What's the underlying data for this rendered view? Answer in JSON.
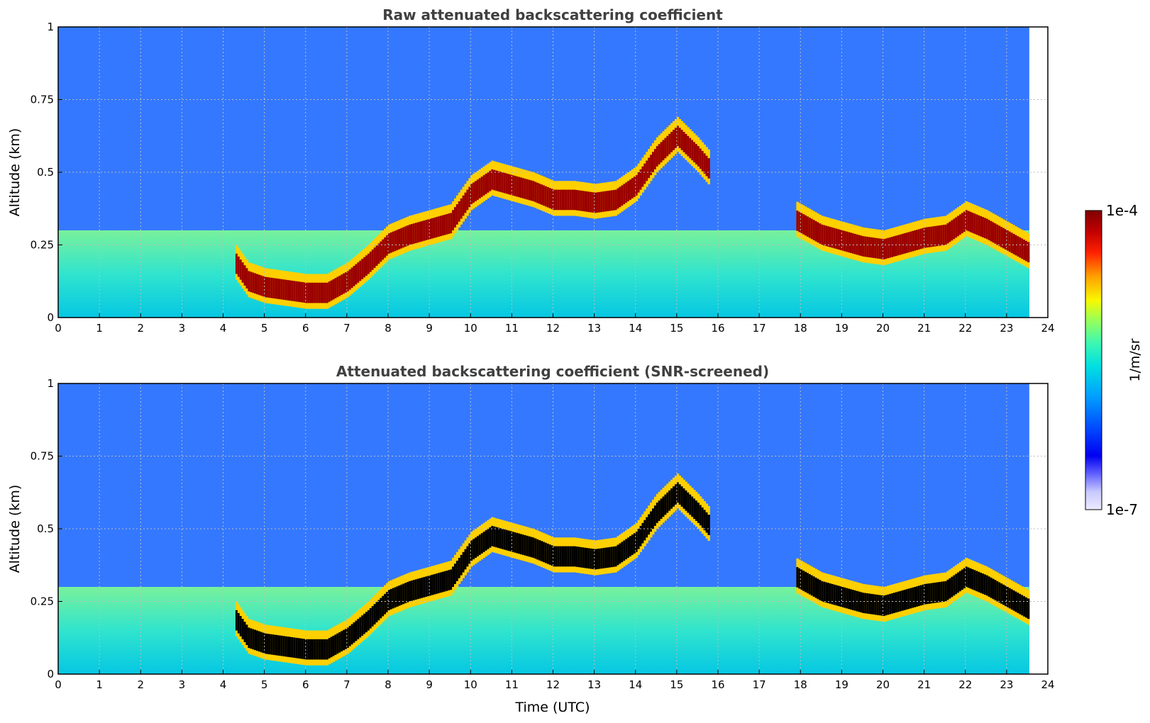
{
  "chart_data": [
    {
      "type": "heatmap",
      "title": "Raw attenuated backscattering coefficient",
      "xlabel": "",
      "ylabel": "Altitude (km)",
      "xlim": [
        0,
        24
      ],
      "ylim": [
        0,
        1
      ],
      "x_ticks": [
        "0",
        "1",
        "2",
        "3",
        "4",
        "5",
        "6",
        "7",
        "8",
        "9",
        "10",
        "11",
        "12",
        "13",
        "14",
        "15",
        "16",
        "17",
        "18",
        "19",
        "20",
        "21",
        "22",
        "23",
        "24"
      ],
      "y_ticks": [
        "0",
        "0.25",
        "0.5",
        "0.75",
        "1"
      ],
      "grid": true,
      "data_end_time": 23.55,
      "layer_altitude_km": {
        "times": [
          4.3,
          4.6,
          5.0,
          5.5,
          6.0,
          6.5,
          7.0,
          7.5,
          8.0,
          8.5,
          9.0,
          9.5,
          10.0,
          10.5,
          11.0,
          11.5,
          12.0,
          12.5,
          13.0,
          13.5,
          14.0,
          14.5,
          15.0,
          15.5,
          15.8,
          18.0,
          18.5,
          19.0,
          19.5,
          20.0,
          20.5,
          21.0,
          21.5,
          22.0,
          22.5,
          23.0,
          23.5
        ],
        "values": [
          0.18,
          0.12,
          0.1,
          0.09,
          0.08,
          0.08,
          0.12,
          0.18,
          0.25,
          0.28,
          0.3,
          0.32,
          0.42,
          0.47,
          0.45,
          0.43,
          0.4,
          0.4,
          0.39,
          0.4,
          0.45,
          0.55,
          0.62,
          0.55,
          0.5,
          0.32,
          0.28,
          0.26,
          0.24,
          0.23,
          0.25,
          0.27,
          0.28,
          0.33,
          0.3,
          0.26,
          0.22
        ]
      }
    },
    {
      "type": "heatmap",
      "title": "Attenuated backscattering coefficient (SNR-screened)",
      "xlabel": "Time (UTC)",
      "ylabel": "Altitude (km)",
      "xlim": [
        0,
        24
      ],
      "ylim": [
        0,
        1
      ],
      "x_ticks": [
        "0",
        "1",
        "2",
        "3",
        "4",
        "5",
        "6",
        "7",
        "8",
        "9",
        "10",
        "11",
        "12",
        "13",
        "14",
        "15",
        "16",
        "17",
        "18",
        "19",
        "20",
        "21",
        "22",
        "23",
        "24"
      ],
      "y_ticks": [
        "0",
        "0.25",
        "0.5",
        "0.75",
        "1"
      ],
      "grid": true,
      "data_end_time": 23.55
    }
  ],
  "colorbar": {
    "label": "1/m/sr",
    "max_label": "1e-4",
    "min_label": "1e-7",
    "colors": [
      "#ecebff",
      "#c8c8ff",
      "#9090ff",
      "#4444ff",
      "#0000f0",
      "#0030ff",
      "#0070ff",
      "#00a8ff",
      "#00d8e8",
      "#30f0c0",
      "#70ff80",
      "#b8ff40",
      "#f8f800",
      "#ffb800",
      "#ff6000",
      "#ff1000",
      "#c00000",
      "#800000"
    ]
  }
}
